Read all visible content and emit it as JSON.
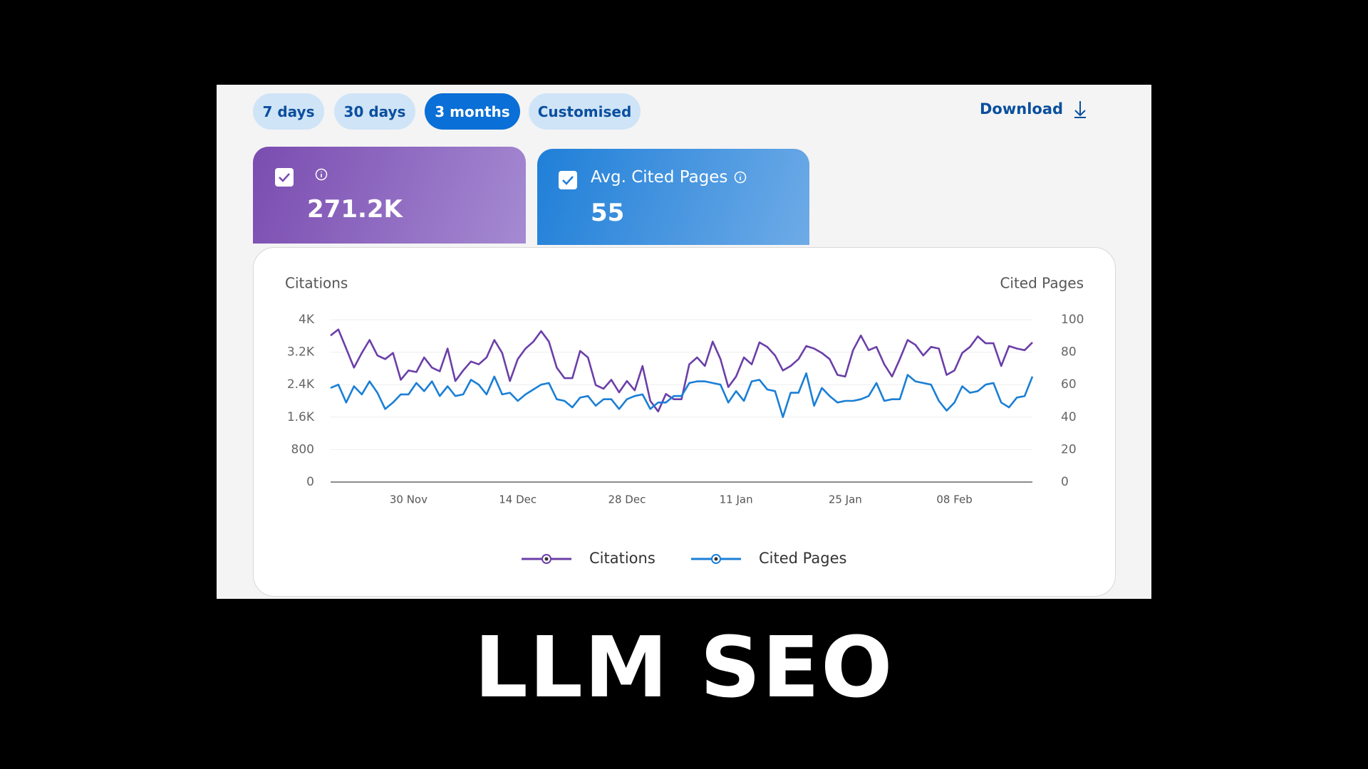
{
  "filters": [
    "7 days",
    "30 days",
    "3 months",
    "Customised"
  ],
  "download": "Download",
  "cards": [
    {
      "value": "271.2K"
    },
    {
      "label": "Avg. Cited Pages",
      "value": "55"
    }
  ],
  "caption": "LLM SEO",
  "chart_data": {
    "type": "line",
    "ylabel": "Citations",
    "y2label": "Cited Pages",
    "categories": [
      null,
      null,
      null,
      null,
      null,
      null,
      null,
      null,
      null,
      null,
      "30 Nov",
      null,
      null,
      null,
      null,
      null,
      null,
      null,
      null,
      null,
      null,
      null,
      null,
      null,
      "14 Dec",
      null,
      null,
      null,
      null,
      null,
      null,
      null,
      null,
      null,
      null,
      null,
      null,
      null,
      "28 Dec",
      null,
      null,
      null,
      null,
      null,
      null,
      null,
      null,
      null,
      null,
      null,
      null,
      null,
      "11 Jan",
      null,
      null,
      null,
      null,
      null,
      null,
      null,
      null,
      null,
      null,
      null,
      null,
      null,
      "25 Jan",
      null,
      null,
      null,
      null,
      null,
      null,
      null,
      null,
      null,
      null,
      null,
      null,
      null,
      "08 Feb",
      null,
      null,
      null,
      null,
      null,
      null,
      null,
      null,
      null,
      null
    ],
    "series": [
      {
        "name": "Citations",
        "color": "#6b3fa8",
        "values": [
          3610,
          3760,
          3290,
          2820,
          3180,
          3500,
          3120,
          3030,
          3180,
          2520,
          2750,
          2710,
          3070,
          2820,
          2730,
          3290,
          2490,
          2750,
          2970,
          2900,
          3070,
          3500,
          3180,
          2490,
          3030,
          3290,
          3460,
          3720,
          3460,
          2820,
          2560,
          2560,
          3230,
          3070,
          2390,
          2300,
          2520,
          2210,
          2490,
          2260,
          2860,
          2000,
          1740,
          2170,
          2040,
          2040,
          2900,
          3070,
          2860,
          3460,
          3030,
          2340,
          2600,
          3070,
          2900,
          3440,
          3330,
          3120,
          2750,
          2860,
          3030,
          3350,
          3290,
          3180,
          3030,
          2640,
          2600,
          3250,
          3610,
          3250,
          3330,
          2900,
          2600,
          3030,
          3500,
          3380,
          3120,
          3330,
          3290,
          2640,
          2750,
          3180,
          3330,
          3590,
          3420,
          3420,
          2860,
          3350,
          3290,
          3250,
          3440
        ]
      },
      {
        "name": "Cited Pages",
        "color": "#1a7fd6",
        "axis": "y2",
        "values": [
          58,
          60,
          49,
          59,
          54,
          62,
          55,
          45,
          49,
          54,
          54,
          61,
          56,
          62,
          53,
          59,
          53,
          54,
          63,
          60,
          54,
          65,
          54,
          55,
          50,
          54,
          57,
          60,
          61,
          51,
          50,
          46,
          52,
          53,
          47,
          51,
          51,
          45,
          51,
          53,
          54,
          45,
          49,
          49,
          53,
          53,
          61,
          62,
          62,
          61,
          60,
          49,
          56,
          50,
          62,
          63,
          57,
          56,
          40,
          55,
          55,
          67,
          47,
          58,
          53,
          49,
          50,
          50,
          51,
          53,
          61,
          50,
          51,
          51,
          66,
          62,
          61,
          60,
          50,
          44,
          49,
          59,
          55,
          56,
          60,
          61,
          49,
          46,
          52,
          53,
          65
        ]
      }
    ],
    "ylim": [
      0,
      4000
    ],
    "yticks": [
      0,
      800,
      {
        "value": 1600,
        "label": "1.6K"
      },
      {
        "value": 2400,
        "label": "2.4K"
      },
      {
        "value": 3200,
        "label": "3.2K"
      },
      {
        "value": 4000,
        "label": "4K"
      }
    ],
    "y2lim": [
      0,
      100
    ],
    "y2ticks": [
      0,
      20,
      40,
      60,
      80,
      100
    ],
    "grid": true
  }
}
